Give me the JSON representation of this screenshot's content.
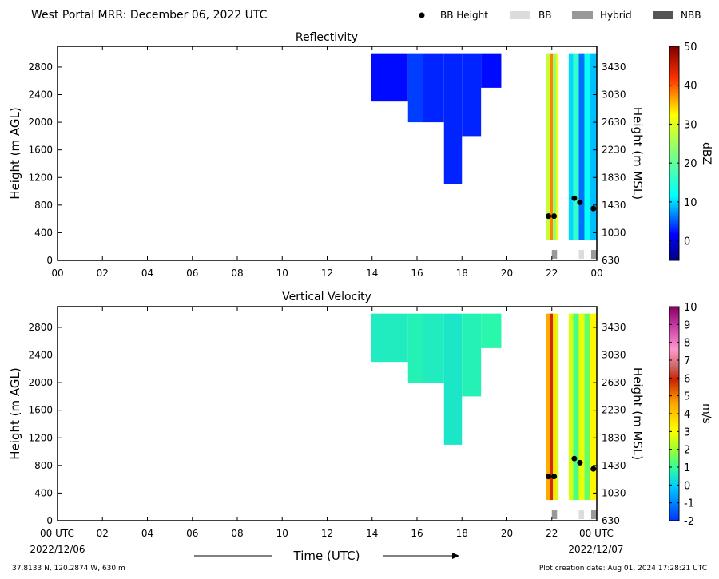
{
  "header": {
    "title": "West Portal MRR:  December 06, 2022 UTC",
    "legend": [
      {
        "label": "BB Height",
        "kind": "dot",
        "color": "#000000"
      },
      {
        "label": "BB",
        "kind": "box",
        "color": "#dcdcdc"
      },
      {
        "label": "Hybrid",
        "kind": "box",
        "color": "#999999"
      },
      {
        "label": "NBB",
        "kind": "box",
        "color": "#555555"
      }
    ]
  },
  "chart_data": [
    {
      "type": "heatmap",
      "title": "Reflectivity",
      "ylabel": "Height (m AGL)",
      "ylabel_right": "Height (m MSL)",
      "xlim": [
        0,
        24
      ],
      "ylim": [
        0,
        3100
      ],
      "yticks": [
        "0",
        "400",
        "800",
        "1200",
        "1600",
        "2000",
        "2400",
        "2800"
      ],
      "yticks_right": [
        "630",
        "1030",
        "1430",
        "1830",
        "2230",
        "2630",
        "3030",
        "3430"
      ],
      "xticks": [
        "00",
        "02",
        "04",
        "06",
        "08",
        "10",
        "12",
        "14",
        "16",
        "18",
        "20",
        "22",
        "00"
      ],
      "colorbar": {
        "label": "dBZ",
        "min": -5,
        "max": 50,
        "ticks": [
          "0",
          "10",
          "20",
          "30",
          "40",
          "50"
        ],
        "tick_values": [
          0,
          10,
          20,
          30,
          40,
          50
        ]
      },
      "echo_top_agl": 3000,
      "echo_columns": [
        {
          "x": [
            13.95,
            15.6
          ],
          "bottom_agl": 2300,
          "value": 2
        },
        {
          "x": [
            15.6,
            16.25
          ],
          "bottom_agl": 2000,
          "value": 4
        },
        {
          "x": [
            16.25,
            17.2
          ],
          "bottom_agl": 2000,
          "value": 3
        },
        {
          "x": [
            17.2,
            18.0
          ],
          "bottom_agl": 1100,
          "value": 3
        },
        {
          "x": [
            18.0,
            18.85
          ],
          "bottom_agl": 1800,
          "value": 3
        },
        {
          "x": [
            18.85,
            19.75
          ],
          "bottom_agl": 2500,
          "value": 2
        },
        {
          "x": [
            21.75,
            21.9
          ],
          "bottom_agl": 300,
          "value": 28
        },
        {
          "x": [
            21.9,
            22.05
          ],
          "bottom_agl": 300,
          "value": 38
        },
        {
          "x": [
            22.05,
            22.2
          ],
          "bottom_agl": 300,
          "value": 24
        },
        {
          "x": [
            22.2,
            22.3
          ],
          "bottom_agl": 300,
          "value": 32
        },
        {
          "x": [
            22.75,
            22.95
          ],
          "bottom_agl": 300,
          "value": 10
        },
        {
          "x": [
            22.95,
            23.2
          ],
          "bottom_agl": 300,
          "value": 16
        },
        {
          "x": [
            23.2,
            23.45
          ],
          "bottom_agl": 300,
          "value": 6
        },
        {
          "x": [
            23.45,
            23.7
          ],
          "bottom_agl": 300,
          "value": 12
        },
        {
          "x": [
            23.7,
            24.0
          ],
          "bottom_agl": 300,
          "value": 9
        }
      ],
      "bb_heights": [
        {
          "x": 21.85,
          "y": 640
        },
        {
          "x": 22.1,
          "y": 640
        },
        {
          "x": 23.0,
          "y": 900
        },
        {
          "x": 23.25,
          "y": 840
        },
        {
          "x": 23.85,
          "y": 750
        }
      ],
      "bb_type_markers": [
        {
          "x": [
            22.0,
            22.25
          ],
          "type": "Hybrid"
        },
        {
          "x": [
            23.2,
            23.45
          ],
          "type": "BB"
        },
        {
          "x": [
            23.75,
            24.0
          ],
          "type": "Hybrid"
        }
      ]
    },
    {
      "type": "heatmap",
      "title": "Vertical Velocity",
      "ylabel": "Height (m AGL)",
      "ylabel_right": "Height (m MSL)",
      "xlim": [
        0,
        24
      ],
      "ylim": [
        0,
        3100
      ],
      "yticks": [
        "0",
        "400",
        "800",
        "1200",
        "1600",
        "2000",
        "2400",
        "2800"
      ],
      "yticks_right": [
        "630",
        "1030",
        "1430",
        "1830",
        "2230",
        "2630",
        "3030",
        "3430"
      ],
      "xticks": [
        "00 UTC",
        "02",
        "04",
        "06",
        "08",
        "10",
        "12",
        "14",
        "16",
        "18",
        "20",
        "22",
        "00 UTC"
      ],
      "xticks_sub": {
        "first": "2022/12/06",
        "last": "2022/12/07"
      },
      "xlabel": "Time (UTC)",
      "colorbar": {
        "label": "m/s",
        "min": -2,
        "max": 10,
        "ticks": [
          "-2",
          "-1",
          "0",
          "1",
          "2",
          "3",
          "4",
          "5",
          "6",
          "7",
          "8",
          "9",
          "10"
        ],
        "tick_values": [
          -2,
          -1,
          0,
          1,
          2,
          3,
          4,
          5,
          6,
          7,
          8,
          9,
          10
        ]
      },
      "echo_top_agl": 3000,
      "echo_columns": [
        {
          "x": [
            13.95,
            15.6
          ],
          "bottom_agl": 2300,
          "value": 0.6
        },
        {
          "x": [
            15.6,
            16.25
          ],
          "bottom_agl": 2000,
          "value": 0.7
        },
        {
          "x": [
            16.25,
            17.2
          ],
          "bottom_agl": 2000,
          "value": 0.6
        },
        {
          "x": [
            17.2,
            18.0
          ],
          "bottom_agl": 1100,
          "value": 0.5
        },
        {
          "x": [
            18.0,
            18.85
          ],
          "bottom_agl": 1800,
          "value": 0.7
        },
        {
          "x": [
            18.85,
            19.75
          ],
          "bottom_agl": 2500,
          "value": 0.8
        },
        {
          "x": [
            21.75,
            21.9
          ],
          "bottom_agl": 300,
          "value": 4.5
        },
        {
          "x": [
            21.9,
            22.05
          ],
          "bottom_agl": 300,
          "value": 5.8
        },
        {
          "x": [
            22.05,
            22.2
          ],
          "bottom_agl": 300,
          "value": 3.5
        },
        {
          "x": [
            22.2,
            22.3
          ],
          "bottom_agl": 300,
          "value": 2.5
        },
        {
          "x": [
            22.75,
            22.95
          ],
          "bottom_agl": 300,
          "value": 2.6
        },
        {
          "x": [
            22.95,
            23.2
          ],
          "bottom_agl": 300,
          "value": 1.2
        },
        {
          "x": [
            23.2,
            23.45
          ],
          "bottom_agl": 300,
          "value": 2.8
        },
        {
          "x": [
            23.45,
            23.7
          ],
          "bottom_agl": 300,
          "value": 1.5
        },
        {
          "x": [
            23.7,
            24.0
          ],
          "bottom_agl": 300,
          "value": 3.2
        }
      ],
      "bb_heights": [
        {
          "x": 21.85,
          "y": 640
        },
        {
          "x": 22.1,
          "y": 640
        },
        {
          "x": 23.0,
          "y": 900
        },
        {
          "x": 23.25,
          "y": 840
        },
        {
          "x": 23.85,
          "y": 750
        }
      ],
      "bb_type_markers": [
        {
          "x": [
            22.0,
            22.25
          ],
          "type": "Hybrid"
        },
        {
          "x": [
            23.2,
            23.45
          ],
          "type": "BB"
        },
        {
          "x": [
            23.75,
            24.0
          ],
          "type": "Hybrid"
        }
      ]
    }
  ],
  "footer": {
    "location": "37.8133 N, 120.2874 W, 630 m",
    "creation": "Plot creation date: Aug 01, 2024 17:28:21 UTC"
  }
}
